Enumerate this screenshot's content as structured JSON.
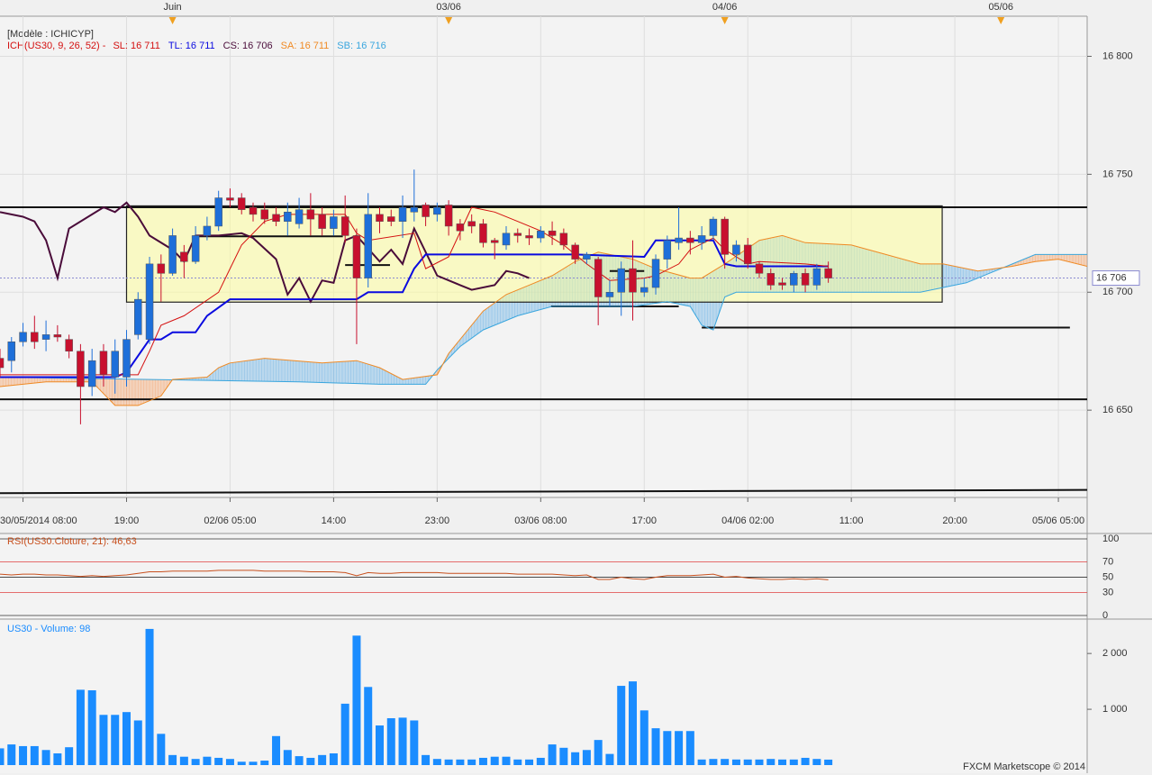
{
  "header": {
    "template": "[Modèle : ICHICYP]",
    "indicator": "ICH(US30, 9, 26, 52) -"
  },
  "chart_data": [
    {
      "type": "candlestick",
      "x": [
        0,
        1,
        2,
        3,
        4,
        5,
        6,
        7,
        8,
        9,
        10,
        11,
        12,
        13,
        14,
        15,
        16,
        17,
        18,
        19,
        20,
        21,
        22,
        23,
        24,
        25,
        26,
        27,
        28,
        29,
        30,
        31,
        32,
        33,
        34,
        35,
        36,
        37,
        38,
        39,
        40,
        41,
        42,
        43,
        44,
        45,
        46,
        47,
        48,
        49,
        50,
        51,
        52,
        53,
        54,
        55,
        56,
        57,
        58,
        59,
        60,
        61,
        62,
        63,
        64,
        65,
        66,
        67,
        68,
        69,
        70,
        71,
        72
      ],
      "open": [
        16672,
        16671,
        16679,
        16683,
        16680,
        16682,
        16680,
        16675,
        16660,
        16675,
        16664,
        16664,
        16682,
        16680,
        16712,
        16708,
        16717,
        16713,
        16724,
        16728,
        16740,
        16740,
        16736,
        16735,
        16733,
        16730,
        16729,
        16735,
        16733,
        16727,
        16732,
        16724,
        16706,
        16733,
        16732,
        16730,
        16734,
        16737,
        16733,
        16737,
        16729,
        16730,
        16729,
        16722,
        16720,
        16725,
        16724,
        16723,
        16726,
        16725,
        16720,
        16714,
        16714,
        16698,
        16700,
        16710,
        16700,
        16702,
        16714,
        16721,
        16723,
        16721,
        16724,
        16731,
        16716,
        16720,
        16712,
        16708,
        16704,
        16703,
        16708,
        16703,
        16710
      ],
      "high": [
        16676,
        16681,
        16687,
        16690,
        16688,
        16686,
        16682,
        16678,
        16676,
        16678,
        16680,
        16684,
        16700,
        16715,
        16716,
        16727,
        16720,
        16728,
        16732,
        16743,
        16744,
        16742,
        16738,
        16738,
        16736,
        16738,
        16740,
        16742,
        16736,
        16735,
        16741,
        16727,
        16742,
        16736,
        16735,
        16741,
        16752,
        16738,
        16738,
        16739,
        16731,
        16733,
        16731,
        16723,
        16728,
        16727,
        16727,
        16728,
        16730,
        16727,
        16721,
        16717,
        16715,
        16705,
        16713,
        16722,
        16706,
        16716,
        16724,
        16736,
        16726,
        16728,
        16732,
        16732,
        16722,
        16723,
        16713,
        16710,
        16706,
        16709,
        16710,
        16712,
        16713
      ],
      "low": [
        16664,
        16666,
        16677,
        16676,
        16675,
        16679,
        16672,
        16644,
        16656,
        16660,
        16657,
        16660,
        16680,
        16678,
        16696,
        16707,
        16706,
        16712,
        16722,
        16726,
        16736,
        16733,
        16730,
        16729,
        16728,
        16724,
        16727,
        16724,
        16724,
        16724,
        16721,
        16678,
        16702,
        16725,
        16728,
        16723,
        16730,
        16728,
        16730,
        16724,
        16722,
        16725,
        16719,
        16714,
        16718,
        16721,
        16720,
        16721,
        16720,
        16718,
        16712,
        16712,
        16686,
        16694,
        16690,
        16688,
        16698,
        16699,
        16710,
        16718,
        16716,
        16718,
        16722,
        16710,
        16713,
        16710,
        16706,
        16701,
        16701,
        16700,
        16700,
        16701,
        16704
      ],
      "close": [
        16668,
        16679,
        16683,
        16679,
        16682,
        16681,
        16675,
        16660,
        16671,
        16665,
        16675,
        16680,
        16697,
        16712,
        16708,
        16724,
        16713,
        16724,
        16728,
        16740,
        16739,
        16735,
        16733,
        16731,
        16730,
        16734,
        16735,
        16731,
        16727,
        16732,
        16724,
        16706,
        16733,
        16730,
        16730,
        16736,
        16736,
        16732,
        16736,
        16728,
        16726,
        16728,
        16721,
        16721,
        16725,
        16724,
        16723,
        16726,
        16724,
        16720,
        16714,
        16716,
        16698,
        16700,
        16710,
        16700,
        16702,
        16714,
        16722,
        16723,
        16721,
        16724,
        16731,
        16716,
        16720,
        16712,
        16708,
        16703,
        16703,
        16708,
        16703,
        16710,
        16706
      ],
      "up_color": "#1e6fd9",
      "down_color": "#c8102e",
      "xlim": [
        0,
        94.5
      ],
      "ylim": [
        16613,
        16817
      ],
      "yticks": [
        {
          "value": 16650,
          "label": "16 650"
        },
        {
          "value": 16700,
          "label": "16 700"
        },
        {
          "value": 16750,
          "label": "16 750"
        },
        {
          "value": 16800,
          "label": "16 800"
        }
      ],
      "xticks": [
        {
          "value": 2,
          "label": "30/05/2014 08:00"
        },
        {
          "value": 11,
          "label": "19:00"
        },
        {
          "value": 20,
          "label": "02/06 05:00"
        },
        {
          "value": 29,
          "label": "14:00"
        },
        {
          "value": 38,
          "label": "23:00"
        },
        {
          "value": 47,
          "label": "03/06 08:00"
        },
        {
          "value": 56,
          "label": "17:00"
        },
        {
          "value": 65,
          "label": "04/06 02:00"
        },
        {
          "value": 74,
          "label": "11:00"
        },
        {
          "value": 83,
          "label": "20:00"
        },
        {
          "value": 92,
          "label": "05/06 05:00"
        }
      ],
      "top_xticks": [
        {
          "value": 15,
          "label": "Juin"
        },
        {
          "value": 39,
          "label": "03/06"
        },
        {
          "value": 63,
          "label": "04/06"
        },
        {
          "value": 87,
          "label": "05/06"
        }
      ],
      "grid": true,
      "series": [
        {
          "name": "SL: 16 711",
          "color": "#d41010",
          "width": 1,
          "x": [
            0,
            12,
            13,
            14,
            16,
            19,
            20,
            21,
            23,
            25,
            30,
            31,
            32,
            36,
            37,
            39,
            41,
            43,
            45,
            47,
            49,
            51,
            53,
            56,
            57,
            59,
            60,
            62,
            63,
            65,
            66,
            70,
            72
          ],
          "values": [
            16665,
            16665,
            16675,
            16686,
            16690,
            16700,
            16710,
            16720,
            16730,
            16733,
            16733,
            16725,
            16722,
            16725,
            16710,
            16715,
            16736,
            16734,
            16730,
            16726,
            16720,
            16712,
            16705,
            16706,
            16707,
            16712,
            16718,
            16723,
            16718,
            16712,
            16713,
            16712,
            16711
          ]
        },
        {
          "name": "TL: 16 711",
          "color": "#0a0ae0",
          "width": 2,
          "x": [
            0,
            10,
            11,
            13,
            14,
            15,
            17,
            18,
            20,
            31,
            32,
            35,
            36,
            37,
            50,
            56,
            57,
            62,
            63,
            64,
            72
          ],
          "values": [
            16664,
            16664,
            16666,
            16680,
            16680,
            16683,
            16683,
            16690,
            16697,
            16697,
            16700,
            16700,
            16710,
            16716,
            16716,
            16715,
            16722,
            16722,
            16712,
            16711,
            16711
          ]
        },
        {
          "name": "CS: 16 706",
          "color": "#4a0c3a",
          "width": 2,
          "x": [
            0,
            2,
            3,
            4,
            5,
            6,
            8,
            9,
            10,
            11,
            12,
            13,
            15,
            16,
            17,
            19,
            21,
            22,
            24,
            25,
            26,
            27,
            28,
            29,
            30,
            31,
            33,
            34,
            35,
            36,
            38,
            40,
            41,
            43,
            44,
            45,
            46
          ],
          "values": [
            16734,
            16732,
            16730,
            16722,
            16706,
            16727,
            16733,
            16736,
            16734,
            16738,
            16732,
            16724,
            16718,
            16713,
            16724,
            16724,
            16725,
            16723,
            16714,
            16699,
            16706,
            16696,
            16705,
            16704,
            16722,
            16724,
            16713,
            16718,
            16712,
            16727,
            16707,
            16703,
            16701,
            16703,
            16709,
            16708,
            16706
          ]
        },
        {
          "name": "SA: 16 711",
          "color": "#f08a24",
          "width": 1,
          "x": [
            0,
            4,
            8,
            10,
            12,
            14,
            15,
            18,
            19,
            20,
            23,
            28,
            31,
            33,
            35,
            38,
            39,
            42,
            44,
            46,
            48,
            50,
            52,
            55,
            57,
            60,
            61,
            63,
            66,
            68,
            70,
            74,
            77,
            80,
            82,
            85,
            88,
            90,
            92,
            94.5
          ],
          "values": [
            16660,
            16662,
            16662,
            16652,
            16652,
            16656,
            16663,
            16664,
            16668,
            16670,
            16672,
            16670,
            16671,
            16668,
            16663,
            16665,
            16674,
            16692,
            16699,
            16703,
            16707,
            16713,
            16717,
            16714,
            16710,
            16706,
            16706,
            16712,
            16722,
            16724,
            16721,
            16720,
            16716,
            16712,
            16712,
            16709,
            16711,
            16713,
            16714,
            16711
          ]
        },
        {
          "name": "SB: 16 716",
          "color": "#3aa6de",
          "width": 1,
          "x": [
            0,
            26,
            33,
            37,
            38,
            40,
            42,
            45,
            48,
            55,
            58,
            60,
            61,
            62,
            63,
            64,
            80,
            84,
            86,
            88,
            90,
            94.5
          ],
          "values": [
            16664,
            16662,
            16661,
            16661,
            16667,
            16677,
            16684,
            16690,
            16694,
            16694,
            16696,
            16694,
            16686,
            16684,
            16698,
            16700,
            16700,
            16704,
            16708,
            16712,
            16716,
            16716
          ]
        }
      ],
      "cloud_colors": [
        "rgba(120,185,230,0.45)",
        "rgba(245,170,120,0.45)"
      ],
      "box": {
        "x": [
          11,
          81.9
        ],
        "values": [
          16736.6,
          16695.8
        ],
        "color": "rgba(255,255,150,0.5)"
      },
      "hlines": [
        {
          "x": [
            0,
            94.5
          ],
          "values": [
            16736,
            16736
          ]
        },
        {
          "x": [
            0,
            94.5
          ],
          "values": [
            16654.6,
            16654.6
          ]
        },
        {
          "x": [
            61,
            93
          ],
          "values": [
            16685,
            16685
          ]
        },
        {
          "x": [
            0,
            94.5
          ],
          "values": [
            16614.8,
            16616.2
          ]
        },
        {
          "x": [
            16.8,
            29.8
          ],
          "values": [
            16723.7,
            16723.7
          ]
        },
        {
          "x": [
            30,
            33.9
          ],
          "values": [
            16711.5,
            16711.5
          ]
        },
        {
          "x": [
            47.9,
            59
          ],
          "values": [
            16694,
            16694
          ]
        },
        {
          "x": [
            53,
            56
          ],
          "values": [
            16709,
            16709
          ]
        }
      ],
      "current_price": 16706,
      "current_price_label": "16 706"
    },
    {
      "type": "line",
      "title": "RSI(US30.Cloture, 21): 46,63",
      "color": "#c8501e",
      "x": [
        0,
        1,
        2,
        3,
        4,
        5,
        6,
        7,
        8,
        9,
        10,
        11,
        12,
        13,
        14,
        15,
        16,
        17,
        18,
        19,
        20,
        21,
        22,
        23,
        24,
        25,
        26,
        27,
        28,
        29,
        30,
        31,
        32,
        33,
        34,
        35,
        36,
        37,
        38,
        39,
        40,
        41,
        42,
        43,
        44,
        45,
        46,
        47,
        48,
        49,
        50,
        51,
        52,
        53,
        54,
        55,
        56,
        57,
        58,
        59,
        60,
        61,
        62,
        63,
        64,
        65,
        66,
        67,
        68,
        69,
        70,
        71,
        72
      ],
      "values": [
        54,
        53,
        54,
        54,
        53,
        53,
        52,
        51,
        52,
        51,
        52,
        53,
        55,
        57,
        57,
        58,
        58,
        58,
        58,
        59,
        59,
        59,
        59,
        58,
        58,
        58,
        58,
        57,
        57,
        57,
        56,
        52,
        56,
        55,
        55,
        56,
        56,
        56,
        56,
        55,
        55,
        55,
        55,
        55,
        55,
        54,
        54,
        54,
        54,
        53,
        52,
        53,
        47,
        47,
        50,
        48,
        47,
        50,
        52,
        52,
        52,
        53,
        54,
        50,
        51,
        49,
        48,
        47,
        47,
        48,
        47,
        48,
        46.63
      ],
      "xlim": [
        0,
        94.5
      ],
      "ylim": [
        0,
        100
      ],
      "yticks": [
        0,
        30,
        50,
        70,
        100
      ],
      "ytick_colors": [
        "#333333",
        "#e04040",
        "#111111",
        "#e04040",
        "#333333"
      ]
    },
    {
      "type": "bar",
      "title": "US30 - Volume: 98",
      "color": "#1a8cff",
      "x": [
        0,
        1,
        2,
        3,
        4,
        5,
        6,
        7,
        8,
        9,
        10,
        11,
        12,
        13,
        14,
        15,
        16,
        17,
        18,
        19,
        20,
        21,
        22,
        23,
        24,
        25,
        26,
        27,
        28,
        29,
        30,
        31,
        32,
        33,
        34,
        35,
        36,
        37,
        38,
        39,
        40,
        41,
        42,
        43,
        44,
        45,
        46,
        47,
        48,
        49,
        50,
        51,
        52,
        53,
        54,
        55,
        56,
        57,
        58,
        59,
        60,
        61,
        62,
        63,
        64,
        65,
        66,
        67,
        68,
        69,
        70,
        71,
        72
      ],
      "values": [
        300,
        370,
        340,
        340,
        270,
        210,
        320,
        1350,
        1340,
        900,
        900,
        950,
        800,
        2440,
        560,
        180,
        150,
        110,
        150,
        130,
        110,
        60,
        60,
        80,
        520,
        270,
        160,
        130,
        180,
        210,
        1100,
        2320,
        1400,
        710,
        840,
        850,
        800,
        180,
        110,
        100,
        100,
        100,
        130,
        150,
        150,
        100,
        100,
        130,
        370,
        310,
        230,
        270,
        450,
        200,
        1420,
        1500,
        980,
        660,
        610,
        610,
        610,
        100,
        110,
        110,
        100,
        100,
        100,
        110,
        100,
        100,
        130,
        110,
        98
      ],
      "xlim": [
        0,
        94.5
      ],
      "ylim": [
        0,
        2600
      ],
      "yticks": [
        {
          "value": 1000,
          "label": "1 000"
        },
        {
          "value": 2000,
          "label": "2 000"
        }
      ],
      "watermark": "FXCM Marketscope © 2014"
    }
  ]
}
